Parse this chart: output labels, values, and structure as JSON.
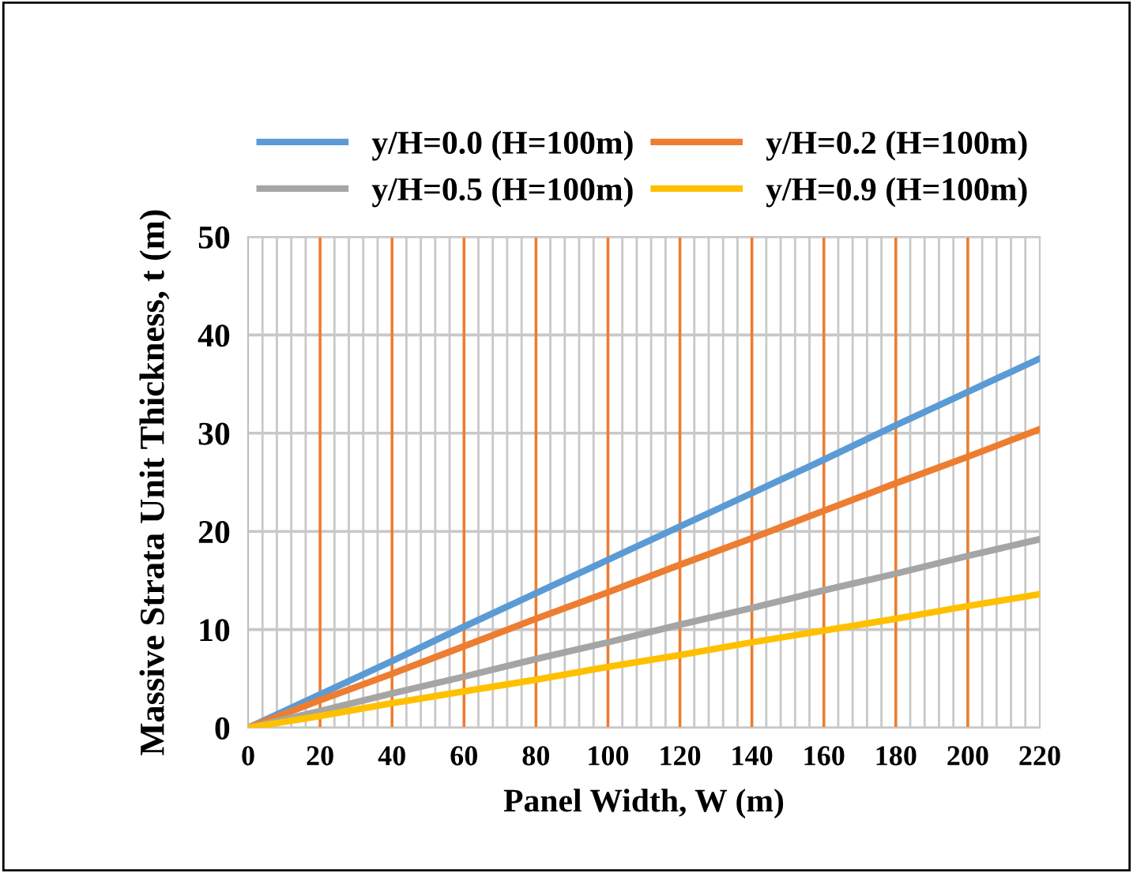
{
  "chart_data": {
    "type": "line",
    "xlabel": "Panel Width, W (m)",
    "ylabel": "Massive Strata Unit Thickness, t (m)",
    "x": [
      0,
      20,
      40,
      60,
      80,
      100,
      120,
      140,
      160,
      180,
      200,
      220
    ],
    "series": [
      {
        "name": "y/H=0.0 (H=100m)",
        "color": "#5b9bd5",
        "values": [
          0,
          3.4,
          6.8,
          10.3,
          13.7,
          17.1,
          20.5,
          23.9,
          27.3,
          30.8,
          34.2,
          37.6
        ]
      },
      {
        "name": "y/H=0.2 (H=100m)",
        "color": "#ed7d31",
        "values": [
          0,
          2.8,
          5.5,
          8.3,
          11.1,
          13.8,
          16.6,
          19.3,
          22.1,
          24.9,
          27.6,
          30.4
        ]
      },
      {
        "name": "y/H=0.5 (H=100m)",
        "color": "#a5a5a5",
        "values": [
          0,
          1.7,
          3.5,
          5.2,
          7.0,
          8.7,
          10.5,
          12.2,
          14.0,
          15.7,
          17.5,
          19.2
        ]
      },
      {
        "name": "y/H=0.9 (H=100m)",
        "color": "#ffc000",
        "values": [
          0,
          1.2,
          2.5,
          3.7,
          4.9,
          6.2,
          7.4,
          8.7,
          9.9,
          11.1,
          12.4,
          13.6
        ]
      }
    ],
    "xlim": [
      0,
      220
    ],
    "xticks": [
      0,
      20,
      40,
      60,
      80,
      100,
      120,
      140,
      160,
      180,
      200,
      220
    ],
    "ylim": [
      0,
      50
    ],
    "yticks": [
      0,
      10,
      20,
      30,
      40,
      50
    ],
    "grid": true,
    "legend": "top",
    "marker": "none",
    "line_style": "solid"
  }
}
